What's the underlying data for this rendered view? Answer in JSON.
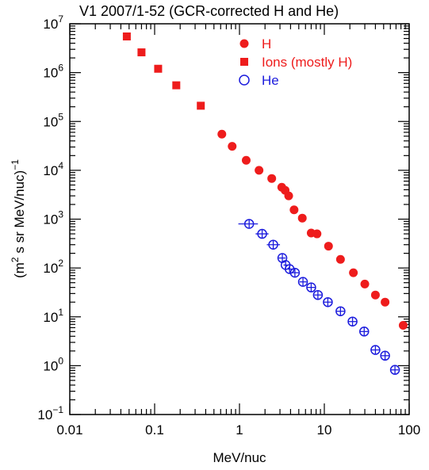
{
  "chart_data": {
    "type": "scatter",
    "title": "V1 2007/1-52 (GCR-corrected H and He)",
    "xlabel": "MeV/nuc",
    "ylabel": "(m^2 s sr MeV/nuc)^-1",
    "ylabel_parts": {
      "prefix": "(m",
      "sup1": "2",
      "middle": " s sr MeV/nuc)",
      "sup2": "−1"
    },
    "xscale": "log",
    "yscale": "log",
    "xlim": [
      0.01,
      100
    ],
    "ylim": [
      0.1,
      10000000
    ],
    "grid": false,
    "legend_position": "top-right",
    "x_tick_labels": [
      "0.01",
      "0.1",
      "1",
      "10",
      "100"
    ],
    "y_tick_labels": [
      {
        "base": "10",
        "exp": "−1"
      },
      {
        "base": "10",
        "exp": "0"
      },
      {
        "base": "10",
        "exp": "1"
      },
      {
        "base": "10",
        "exp": "2"
      },
      {
        "base": "10",
        "exp": "3"
      },
      {
        "base": "10",
        "exp": "4"
      },
      {
        "base": "10",
        "exp": "5"
      },
      {
        "base": "10",
        "exp": "6"
      },
      {
        "base": "10",
        "exp": "7"
      }
    ],
    "series": [
      {
        "name": "H",
        "marker": "filled-circle",
        "color": "#ee1c1c",
        "points": [
          [
            0.62,
            55000
          ],
          [
            0.82,
            31000
          ],
          [
            1.2,
            16000
          ],
          [
            1.7,
            10000
          ],
          [
            2.4,
            6800
          ],
          [
            3.15,
            4500
          ],
          [
            3.45,
            3900
          ],
          [
            3.8,
            3000
          ],
          [
            4.4,
            1550
          ],
          [
            5.5,
            1050
          ],
          [
            7.0,
            520
          ],
          [
            8.2,
            500
          ],
          [
            11.2,
            280
          ],
          [
            15.5,
            150
          ],
          [
            22.0,
            80
          ],
          [
            30.0,
            47
          ],
          [
            40.0,
            28
          ],
          [
            52.0,
            20
          ],
          [
            85.0,
            6.7
          ]
        ]
      },
      {
        "name": "Ions (mostly H)",
        "marker": "filled-square",
        "color": "#ee1c1c",
        "points": [
          [
            0.047,
            5500000
          ],
          [
            0.07,
            2600000
          ],
          [
            0.11,
            1200000
          ],
          [
            0.18,
            550000
          ],
          [
            0.35,
            210000
          ]
        ]
      },
      {
        "name": "He",
        "marker": "open-circle-crossed",
        "color": "#1c1cdd",
        "points": [
          [
            1.3,
            800
          ],
          [
            1.85,
            500
          ],
          [
            2.5,
            300
          ],
          [
            3.2,
            160
          ],
          [
            3.5,
            115
          ],
          [
            3.9,
            95
          ],
          [
            4.5,
            80
          ],
          [
            5.6,
            52
          ],
          [
            7.0,
            40
          ],
          [
            8.4,
            28
          ],
          [
            11.0,
            20
          ],
          [
            15.5,
            13
          ],
          [
            21.5,
            8
          ],
          [
            29.5,
            5
          ],
          [
            40.0,
            2.1
          ],
          [
            52.0,
            1.6
          ],
          [
            68.0,
            0.82
          ]
        ],
        "x_error": [
          [
            0.97,
            1.65
          ],
          [
            1.55,
            2.2
          ],
          [
            2.1,
            3.0
          ],
          [
            2.9,
            3.5
          ],
          [
            3.3,
            3.7
          ],
          [
            3.65,
            4.2
          ],
          [
            4.1,
            5.0
          ],
          [
            5.1,
            6.2
          ],
          [
            6.3,
            7.8
          ],
          [
            7.6,
            9.3
          ],
          [
            9.8,
            12.4
          ],
          [
            13.8,
            17.5
          ],
          [
            19.0,
            24.5
          ],
          [
            26.0,
            33.5
          ],
          [
            36.0,
            44.5
          ],
          [
            46.0,
            58.0
          ],
          [
            61.0,
            75.0
          ]
        ]
      }
    ]
  }
}
